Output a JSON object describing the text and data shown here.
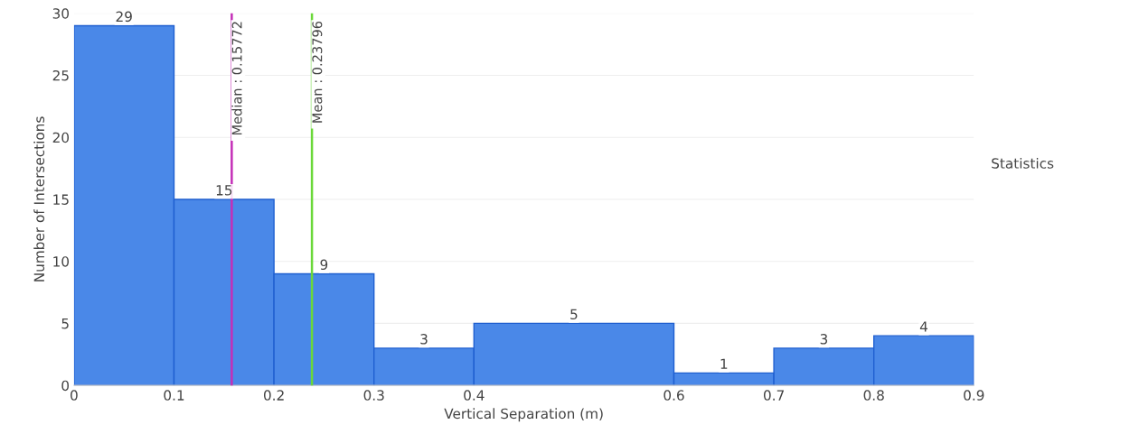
{
  "chart_data": {
    "type": "histogram",
    "xlabel": "Vertical Separation (m)",
    "ylabel": "Number of Intersections",
    "bins": [
      0,
      0.1,
      0.2,
      0.3,
      0.4,
      0.6,
      0.7,
      0.8,
      0.9
    ],
    "values": [
      29,
      15,
      9,
      3,
      5,
      1,
      3,
      4
    ],
    "color": "#4a88e8",
    "data_labels": true,
    "xlim": [
      0,
      0.9
    ],
    "xticks": [
      0,
      0.1,
      0.2,
      0.3,
      0.4,
      0.6,
      0.7,
      0.8,
      0.9
    ],
    "ylim": [
      0,
      30
    ],
    "yticks": [
      0,
      5,
      10,
      15,
      20,
      25,
      30
    ],
    "grid": "y",
    "annotations": [
      "Statistics"
    ],
    "ref_lines": [
      {
        "axis": "x",
        "value": 0.23796,
        "label": "Mean : 0.23796",
        "color": "#6ad838"
      },
      {
        "axis": "x",
        "value": 0.15772,
        "label": "Median : 0.15772",
        "color": "#c42fb8"
      }
    ]
  }
}
